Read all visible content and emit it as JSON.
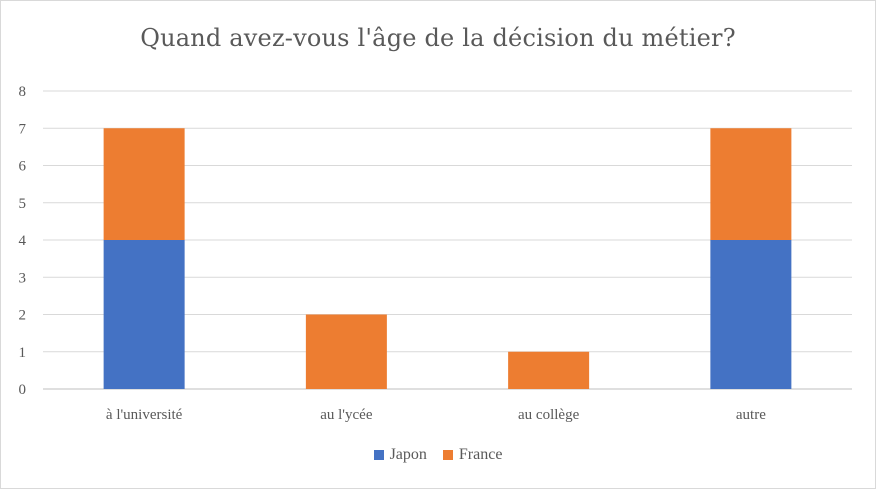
{
  "chart_data": {
    "type": "bar",
    "stacked": true,
    "title": "Quand avez-vous l'âge de la décision du métier?",
    "categories": [
      "à l'université",
      "au l'ycée",
      "au collège",
      "autre"
    ],
    "series": [
      {
        "name": "Japon",
        "values": [
          4,
          0,
          0,
          4
        ],
        "color": "#4472c4"
      },
      {
        "name": "France",
        "values": [
          3,
          2,
          1,
          3
        ],
        "color": "#ed7d31"
      }
    ],
    "ylim": [
      0,
      8
    ],
    "yticks": [
      0,
      1,
      2,
      3,
      4,
      5,
      6,
      7,
      8
    ],
    "grid": true,
    "legend_position": "bottom"
  }
}
